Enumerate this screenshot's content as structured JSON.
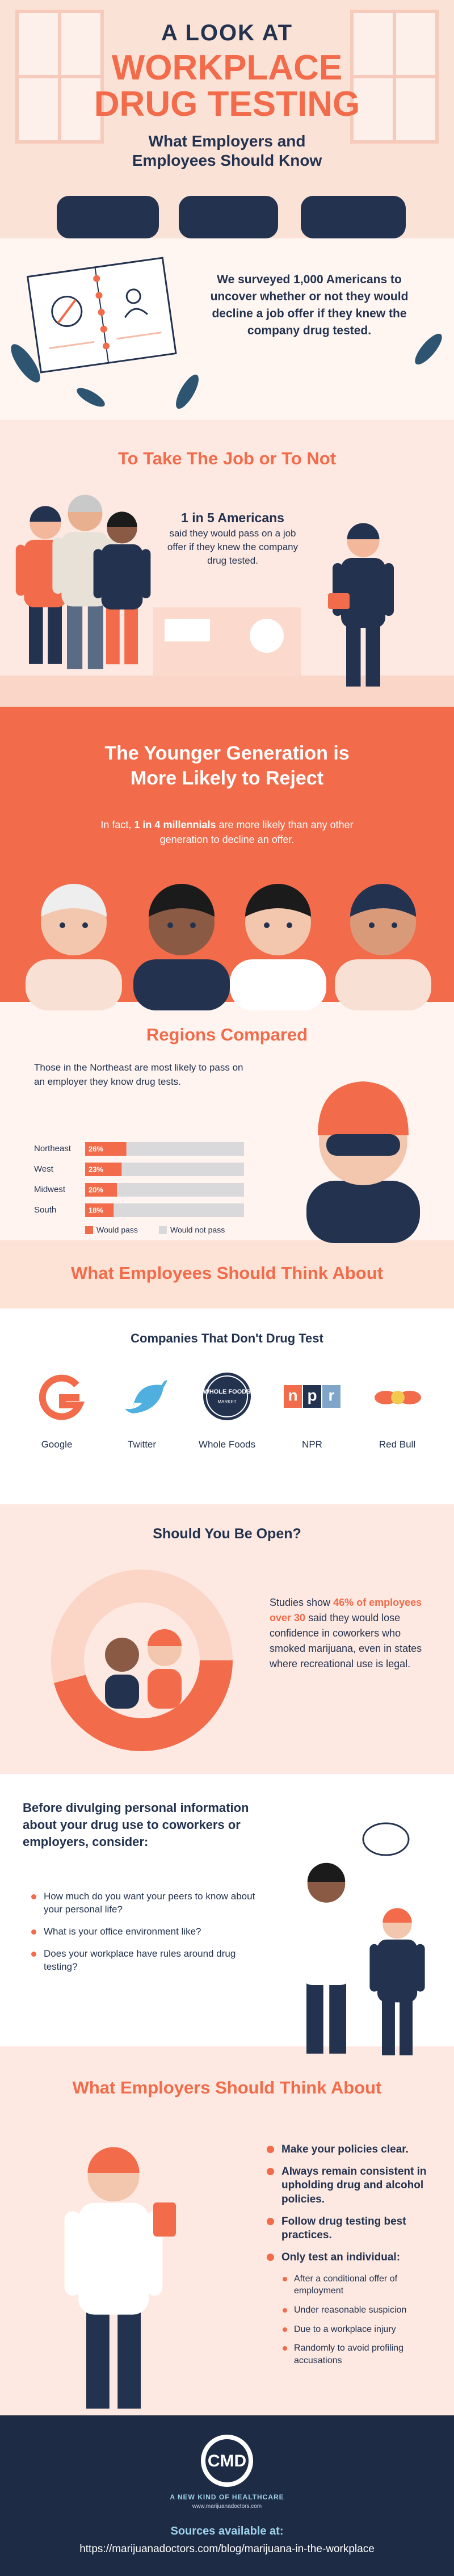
{
  "header": {
    "kicker": "A LOOK AT",
    "title": "WORKPLACE DRUG TESTING",
    "subtitle": "What Employers and Employees Should Know"
  },
  "survey": {
    "text": "We surveyed 1,000 Americans to uncover whether or not they would decline a job offer if they knew the company drug tested."
  },
  "take_the_job": {
    "title": "To Take The Job or To Not",
    "stat": "1 in 5 Americans",
    "text": "said they would pass on a job offer if they knew the company drug tested."
  },
  "younger": {
    "title": "The Younger Generation is More Likely to Reject",
    "text_before": "In fact,",
    "stat": "1 in 4 millennials",
    "text_after": "are more likely than any other generation to decline an offer."
  },
  "chart_data": [
    {
      "type": "bar",
      "orientation": "horizontal",
      "stacked": true,
      "title": "Regions Compared",
      "subtitle": "Those in the Northeast are most likely to pass on an employer they know drug tests.",
      "categories": [
        "Northeast",
        "West",
        "Midwest",
        "South"
      ],
      "series": [
        {
          "name": "Would pass",
          "color": "#f26b4a",
          "values": [
            26,
            23,
            20,
            18
          ],
          "value_labels": [
            "26%",
            "23%",
            "20%",
            "18%"
          ]
        },
        {
          "name": "Would not pass",
          "color": "#d9d9dc",
          "values": [
            74,
            77,
            80,
            82
          ]
        }
      ],
      "xlim": [
        0,
        100
      ]
    },
    {
      "type": "pie",
      "donut": true,
      "title": "Should You Be Open?",
      "values": [
        46,
        54
      ],
      "colors": [
        "#f26b4a",
        "#fbd5c6"
      ]
    }
  ],
  "employees": {
    "title": "What Employees Should Think About",
    "companies_title": "Companies That Don't Drug Test",
    "companies": [
      "Google",
      "Twitter",
      "Whole Foods",
      "NPR",
      "Red Bull"
    ],
    "whole_foods_logo": "WHOLE FOODS",
    "whole_foods_logo_sub": "MARKET",
    "npr_logo": [
      "n",
      "p",
      "r"
    ]
  },
  "open": {
    "text_before": "Studies show",
    "stat": "46% of employees over 30",
    "text_after": "said they would lose confidence in coworkers who smoked marijuana, even in states where recreational use is legal."
  },
  "divulging": {
    "title": "Before divulging personal information about your drug use to coworkers or employers, consider:",
    "items": [
      "How much do you want your peers to know about your personal life?",
      "What is your office environment like?",
      "Does your workplace have rules around drug testing?"
    ]
  },
  "employers": {
    "title": "What Employers Should Think About",
    "items": [
      "Make your policies clear.",
      "Always remain consistent in upholding drug and alcohol policies.",
      "Follow drug testing best practices.",
      "Only test an individual:"
    ],
    "sub_items": [
      "After a conditional offer of employment",
      "Under reasonable suspicion",
      "Due to a workplace injury",
      "Randomly to avoid profiling accusations"
    ]
  },
  "footer": {
    "logo": "CMD",
    "tagline": "A NEW KIND OF HEALTHCARE",
    "website": "www.marijuanadoctors.com",
    "sources_label": "Sources available at:",
    "sources_url": "https://marijuanadoctors.com/blog/marijuana-in-the-workplace"
  }
}
